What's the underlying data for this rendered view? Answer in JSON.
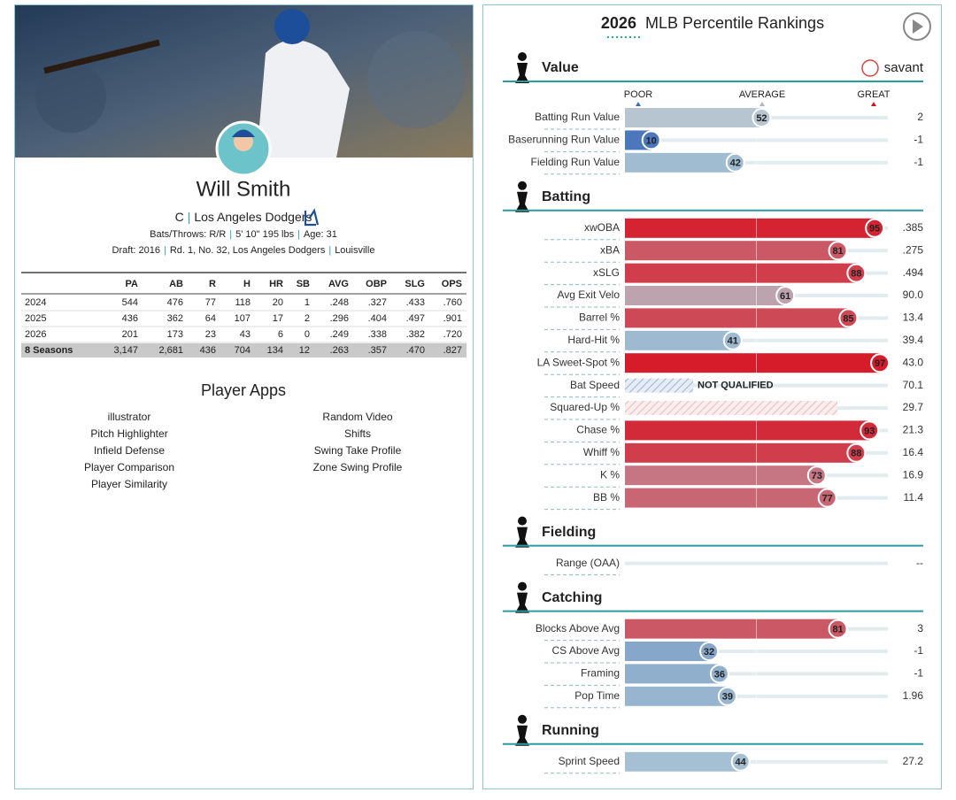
{
  "player": {
    "name": "Will Smith",
    "position": "C",
    "separator": "|",
    "team": "Los Angeles Dodgers",
    "bio": [
      "Bats/Throws: R/R",
      "5' 10\" 195 lbs",
      "Age: 31"
    ],
    "draft": [
      "Draft: 2016",
      "Rd. 1, No. 32, Los Angeles Dodgers",
      "Louisville"
    ]
  },
  "stats_table": {
    "columns": [
      "PA",
      "AB",
      "R",
      "H",
      "HR",
      "SB",
      "AVG",
      "OBP",
      "SLG",
      "OPS"
    ],
    "rows": [
      {
        "label": "2024",
        "values": [
          "544",
          "476",
          "77",
          "118",
          "20",
          "1",
          ".248",
          ".327",
          ".433",
          ".760"
        ]
      },
      {
        "label": "2025",
        "values": [
          "436",
          "362",
          "64",
          "107",
          "17",
          "2",
          ".296",
          ".404",
          ".497",
          ".901"
        ]
      },
      {
        "label": "2026",
        "values": [
          "201",
          "173",
          "23",
          "43",
          "6",
          "0",
          ".249",
          ".338",
          ".382",
          ".720"
        ]
      }
    ],
    "total": {
      "label": "8 Seasons",
      "values": [
        "3,147",
        "2,681",
        "436",
        "704",
        "134",
        "12",
        ".263",
        ".357",
        ".470",
        ".827"
      ]
    }
  },
  "player_apps": {
    "title": "Player Apps",
    "left": [
      "illustrator",
      "Pitch Highlighter",
      "Infield Defense",
      "Player Comparison",
      "Player Similarity"
    ],
    "right": [
      "Random Video",
      "Shifts",
      "Swing Take Profile",
      "Zone Swing Profile"
    ]
  },
  "percentile_rankings": {
    "year": "2026",
    "title": "MLB Percentile Rankings",
    "source": "savant",
    "legend": [
      "POOR",
      "AVERAGE",
      "GREAT"
    ],
    "sections": [
      {
        "name": "Value",
        "metrics": [
          {
            "name": "Batting Run Value",
            "percentile": 52,
            "value": "2"
          },
          {
            "name": "Baserunning Run Value",
            "percentile": 10,
            "value": "-1"
          },
          {
            "name": "Fielding Run Value",
            "percentile": 42,
            "value": "-1"
          }
        ]
      },
      {
        "name": "Batting",
        "metrics": [
          {
            "name": "xwOBA",
            "percentile": 95,
            "value": ".385"
          },
          {
            "name": "xBA",
            "percentile": 81,
            "value": ".275"
          },
          {
            "name": "xSLG",
            "percentile": 88,
            "value": ".494"
          },
          {
            "name": "Avg Exit Velo",
            "percentile": 61,
            "value": "90.0"
          },
          {
            "name": "Barrel %",
            "percentile": 85,
            "value": "13.4"
          },
          {
            "name": "Hard-Hit %",
            "percentile": 41,
            "value": "39.4"
          },
          {
            "name": "LA Sweet-Spot %",
            "percentile": 97,
            "value": "43.0"
          },
          {
            "name": "Bat Speed",
            "percentile": null,
            "note": "NOT QUALIFIED",
            "value": "70.1"
          },
          {
            "name": "Squared-Up %",
            "percentile": null,
            "value": "29.7"
          },
          {
            "name": "Chase %",
            "percentile": 93,
            "value": "21.3"
          },
          {
            "name": "Whiff %",
            "percentile": 88,
            "value": "16.4"
          },
          {
            "name": "K %",
            "percentile": 73,
            "value": "16.9"
          },
          {
            "name": "BB %",
            "percentile": 77,
            "value": "11.4"
          }
        ]
      },
      {
        "name": "Fielding",
        "metrics": [
          {
            "name": "Range (OAA)",
            "percentile": null,
            "value": "--"
          }
        ]
      },
      {
        "name": "Catching",
        "metrics": [
          {
            "name": "Blocks Above Avg",
            "percentile": 81,
            "value": "3"
          },
          {
            "name": "CS Above Avg",
            "percentile": 32,
            "value": "-1"
          },
          {
            "name": "Framing",
            "percentile": 36,
            "value": "-1"
          },
          {
            "name": "Pop Time",
            "percentile": 39,
            "value": "1.96"
          }
        ]
      },
      {
        "name": "Running",
        "metrics": [
          {
            "name": "Sprint Speed",
            "percentile": 44,
            "value": "27.2"
          }
        ]
      }
    ]
  }
}
